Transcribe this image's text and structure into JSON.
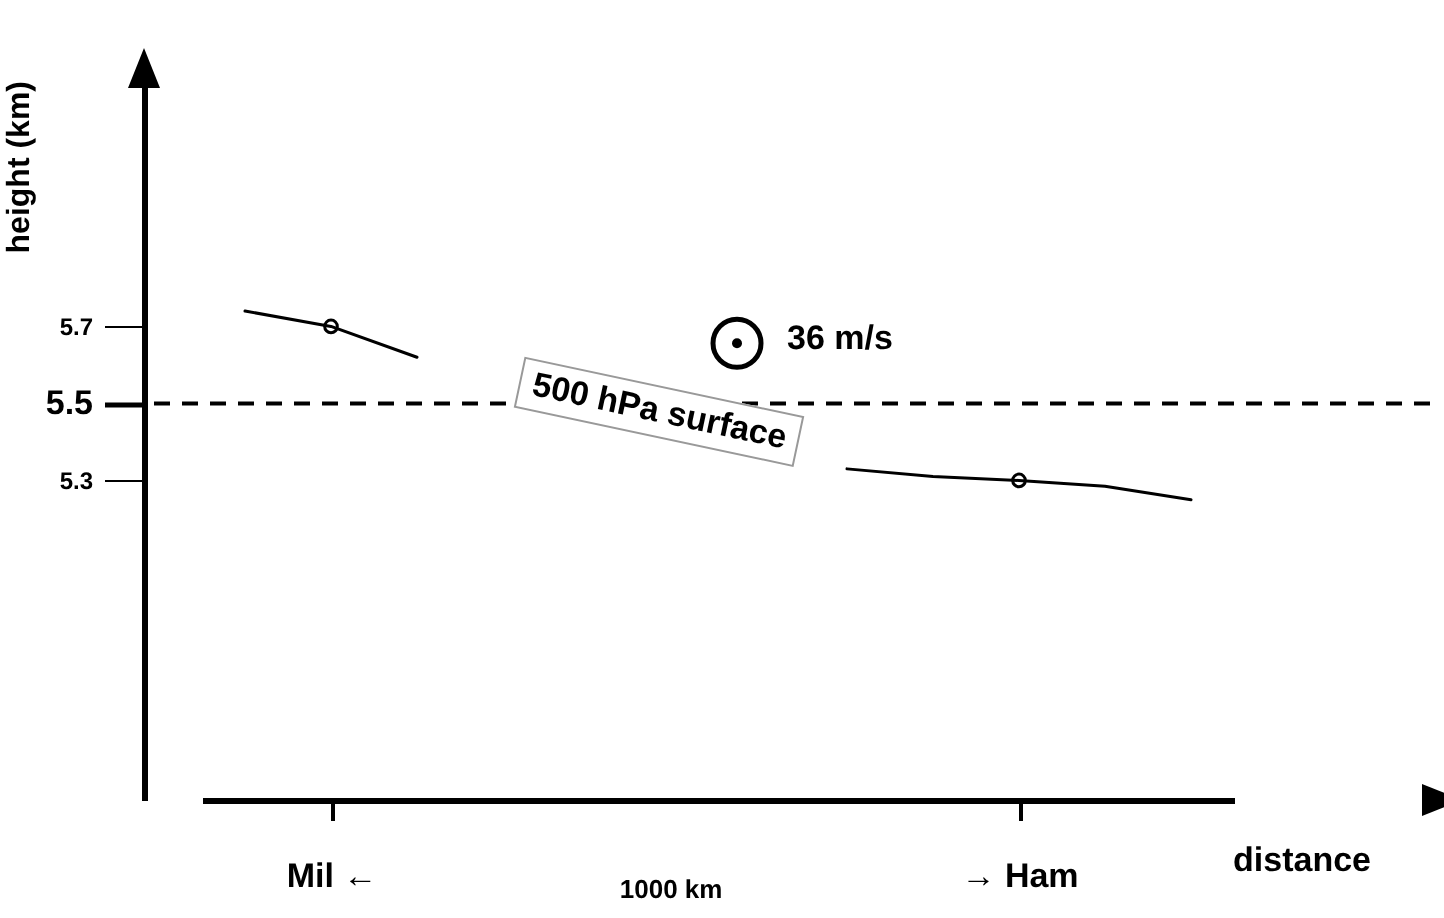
{
  "chart_data": {
    "type": "line",
    "xlabel": "distance",
    "ylabel": "height (km)",
    "categories": [
      null,
      "Mil ←",
      null,
      null,
      null,
      null,
      null,
      null,
      null,
      "→ Ham",
      null,
      null
    ],
    "ylim": [
      4.47,
      6.34
    ],
    "yticks": [
      5.3,
      5.5,
      5.7
    ],
    "series": [
      {
        "color": "#000000",
        "marker": "none",
        "values": [
          5.74,
          5.7,
          5.62,
          null,
          null,
          null,
          null,
          5.33,
          5.31,
          5.3,
          5.285,
          5.25
        ]
      },
      {
        "type": "scatter",
        "color": "#000000",
        "marker": "circle",
        "values": [
          null,
          5.7,
          null,
          null,
          null,
          null,
          null,
          null,
          null,
          5.3,
          null,
          null
        ]
      }
    ],
    "ref_lines": [
      {
        "axis": "y",
        "value": 5.5,
        "line_style": "dashed"
      }
    ],
    "annotations": [
      {
        "text": "500 hPa surface",
        "y": 5.48
      },
      "36 m/s",
      "1000 km"
    ]
  }
}
